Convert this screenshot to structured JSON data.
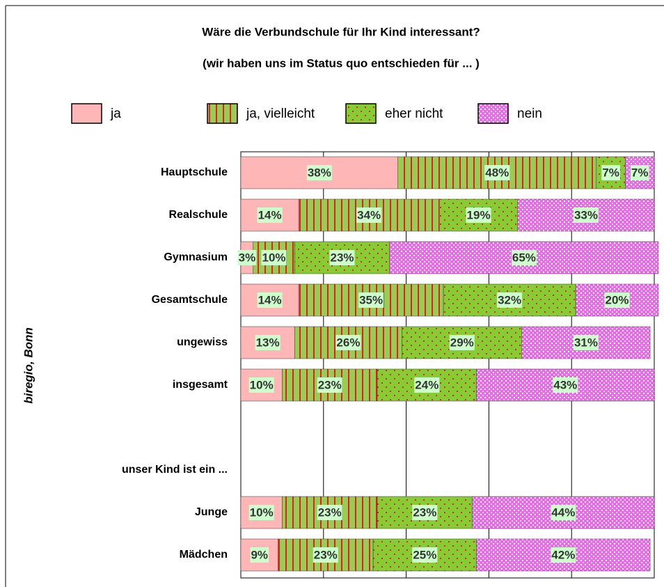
{
  "chart_data": {
    "type": "stacked_barh",
    "title": "Wäre die Verbundschule für Ihr Kind interessant?",
    "subtitle": "(wir haben uns im Status quo entschieden für ... )",
    "annotation": "biregio, Bonn",
    "categories": [
      "Hauptschule",
      "Realschule",
      "Gymnasium",
      "Gesamtschule",
      "ungewiss",
      "insgesamt",
      null,
      "unser Kind ist ein ...",
      "Junge",
      "Mädchen"
    ],
    "series": [
      {
        "name": "ja",
        "color": "#ffb6b6",
        "pattern": "solid",
        "values": [
          38,
          14,
          3,
          14,
          13,
          10,
          null,
          null,
          10,
          9
        ],
        "value_labels": [
          "38%",
          "14%",
          "3%",
          "14%",
          "13%",
          "10%",
          null,
          null,
          "10%",
          "9%"
        ]
      },
      {
        "name": "ja, vielleicht",
        "color": "#99cc55",
        "pattern": "stripes",
        "values": [
          48,
          34,
          10,
          35,
          26,
          23,
          null,
          null,
          23,
          23
        ],
        "value_labels": [
          "48%",
          "34%",
          "10%",
          "35%",
          "26%",
          "23%",
          null,
          null,
          "23%",
          "23%"
        ]
      },
      {
        "name": "eher nicht",
        "color": "#88cc33",
        "pattern": "dots",
        "values": [
          7,
          19,
          23,
          32,
          29,
          24,
          null,
          null,
          23,
          25
        ],
        "value_labels": [
          "7%",
          "19%",
          "23%",
          "32%",
          "29%",
          "24%",
          null,
          null,
          "23%",
          "25%"
        ]
      },
      {
        "name": "nein",
        "color": "#ee66ee",
        "pattern": "checks",
        "values": [
          7,
          33,
          65,
          20,
          31,
          43,
          null,
          null,
          44,
          42
        ],
        "value_labels": [
          "7%",
          "33%",
          "65%",
          "20%",
          "31%",
          "43%",
          null,
          null,
          "44%",
          "42%"
        ]
      }
    ],
    "xlim": [
      0,
      100
    ],
    "xticks": [
      0,
      20,
      40,
      60,
      80,
      100
    ],
    "grid": true
  }
}
